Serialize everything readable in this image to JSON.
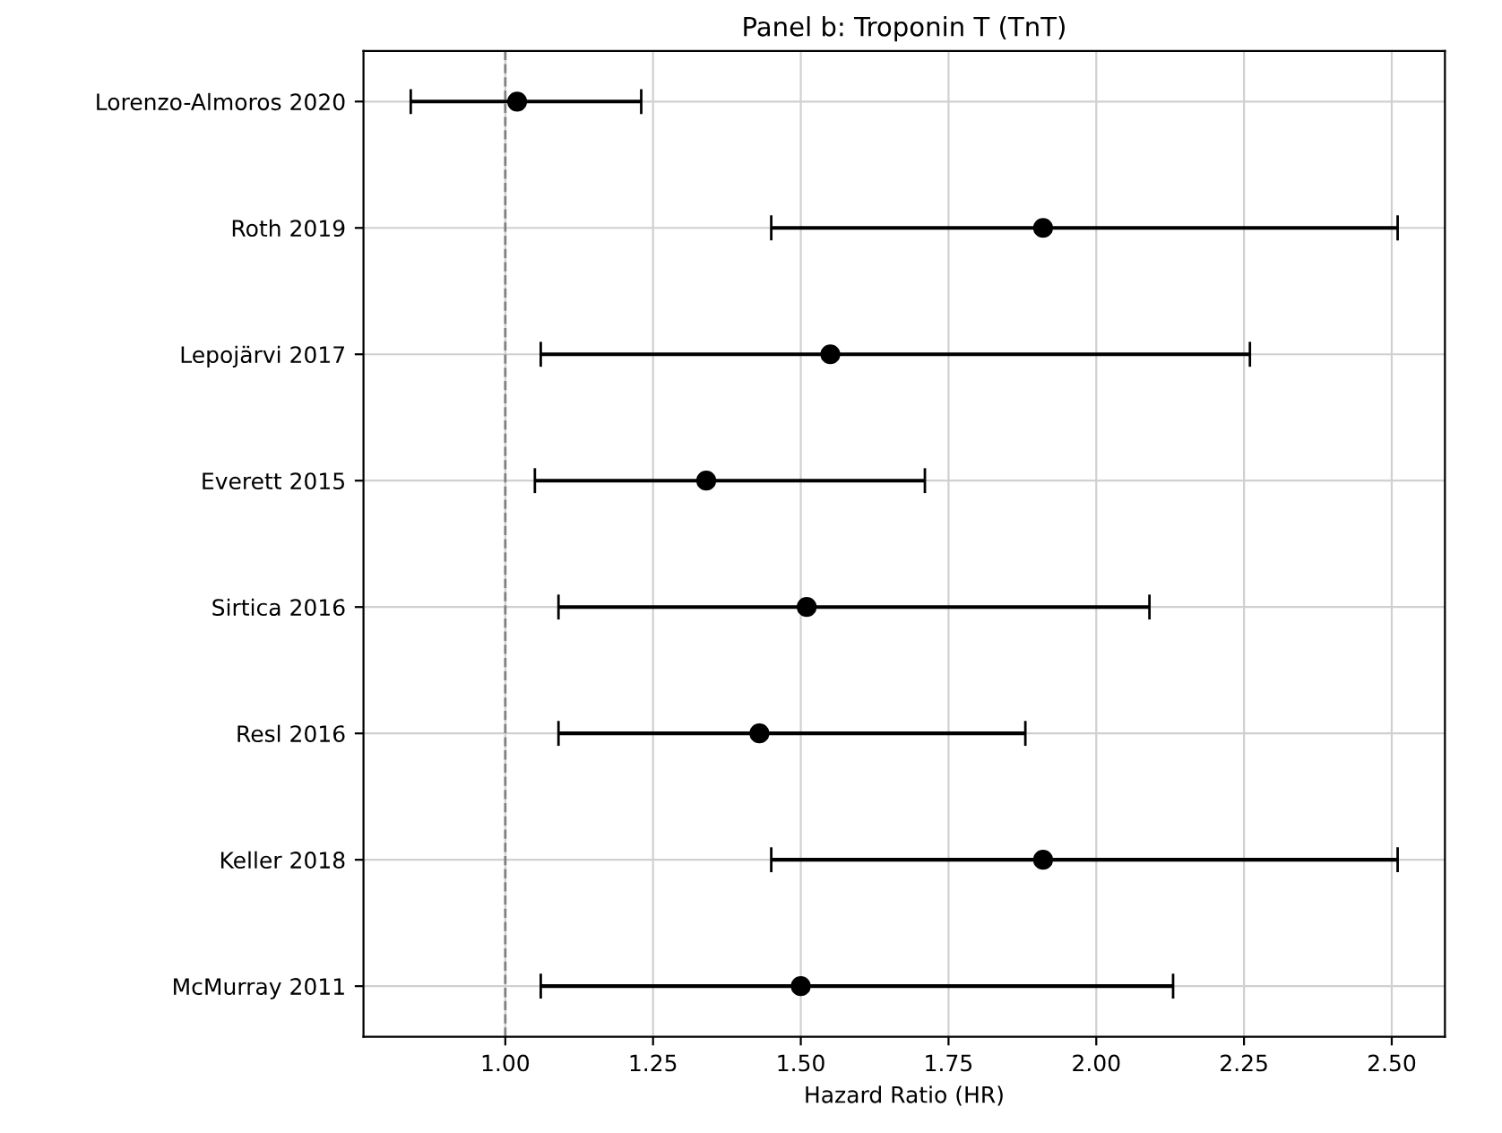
{
  "chart_data": {
    "type": "scatter",
    "orientation": "horizontal",
    "title": "Panel b: Troponin T (TnT)",
    "xlabel": "Hazard Ratio (HR)",
    "categories": [
      "Lorenzo-Almoros 2020",
      "Roth 2019",
      "Lepojärvi 2017",
      "Everett 2015",
      "Sirtica 2016",
      "Resl 2016",
      "Keller 2018",
      "McMurray 2011"
    ],
    "series": [
      {
        "color": "#000000",
        "values": [
          1.02,
          1.91,
          1.55,
          1.34,
          1.51,
          1.43,
          1.91,
          1.5
        ],
        "errors": [
          [
            0.84,
            1.23
          ],
          [
            1.45,
            2.51
          ],
          [
            1.06,
            2.26
          ],
          [
            1.05,
            1.71
          ],
          [
            1.09,
            2.09
          ],
          [
            1.09,
            1.88
          ],
          [
            1.45,
            2.51
          ],
          [
            1.06,
            2.13
          ]
        ]
      }
    ],
    "xlim": [
      0.76,
      2.59
    ],
    "xticks": [
      {
        "value": 1.0,
        "label": "1.00"
      },
      {
        "value": 1.25,
        "label": "1.25"
      },
      {
        "value": 1.5,
        "label": "1.50"
      },
      {
        "value": 1.75,
        "label": "1.75"
      },
      {
        "value": 2.0,
        "label": "2.00"
      },
      {
        "value": 2.25,
        "label": "2.25"
      },
      {
        "value": 2.5,
        "label": "2.50"
      }
    ],
    "ref_lines": [
      {
        "axis": "x",
        "value": 1.0,
        "color": "#808080",
        "line_style": "dashed"
      }
    ],
    "grid": true,
    "marker": "circle"
  }
}
